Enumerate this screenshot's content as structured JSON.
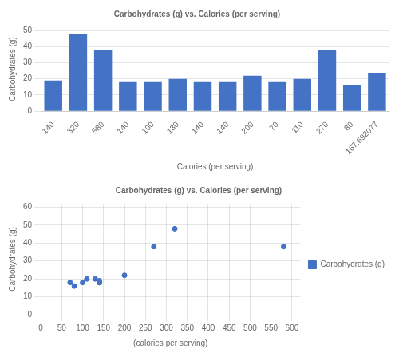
{
  "chart_data": [
    {
      "type": "bar",
      "title": "Carbohydrates (g) vs. Calories (per serving)",
      "x_label": "Calories (per serving)",
      "y_label": "Carbohydrates (g)",
      "categories": [
        "140",
        "320",
        "580",
        "140",
        "100",
        "130",
        "140",
        "140",
        "200",
        "70",
        "110",
        "270",
        "80",
        "167.692077"
      ],
      "values": [
        19,
        48,
        38,
        18,
        18,
        20,
        18,
        18,
        22,
        18,
        20,
        38,
        16,
        23.85
      ],
      "color": "#4472C4",
      "ylim": [
        0,
        52
      ],
      "yticks": [
        0,
        10,
        20,
        30,
        40,
        50
      ],
      "grid": "y"
    },
    {
      "type": "scatter",
      "title": "Carbohydrates (g) vs. Calories (per serving)",
      "x_label": "(calories per serving)",
      "y_label": "Carbohydrates (g)",
      "x": [
        140,
        320,
        580,
        140,
        100,
        130,
        140,
        140,
        200,
        70,
        110,
        270,
        80
      ],
      "series": [
        {
          "name": "Carbohydrates (g)",
          "color": "#4472C4",
          "values": [
            19,
            48,
            38,
            18,
            18,
            20,
            18,
            18,
            22,
            18,
            20,
            38,
            16
          ]
        }
      ],
      "xlim": [
        0,
        620
      ],
      "xticks": [
        0,
        50,
        100,
        150,
        200,
        250,
        300,
        350,
        400,
        450,
        500,
        550,
        600
      ],
      "ylim": [
        0,
        62
      ],
      "yticks": [
        0,
        10,
        20,
        30,
        40,
        50,
        60
      ],
      "grid": true,
      "legend": "right"
    }
  ]
}
